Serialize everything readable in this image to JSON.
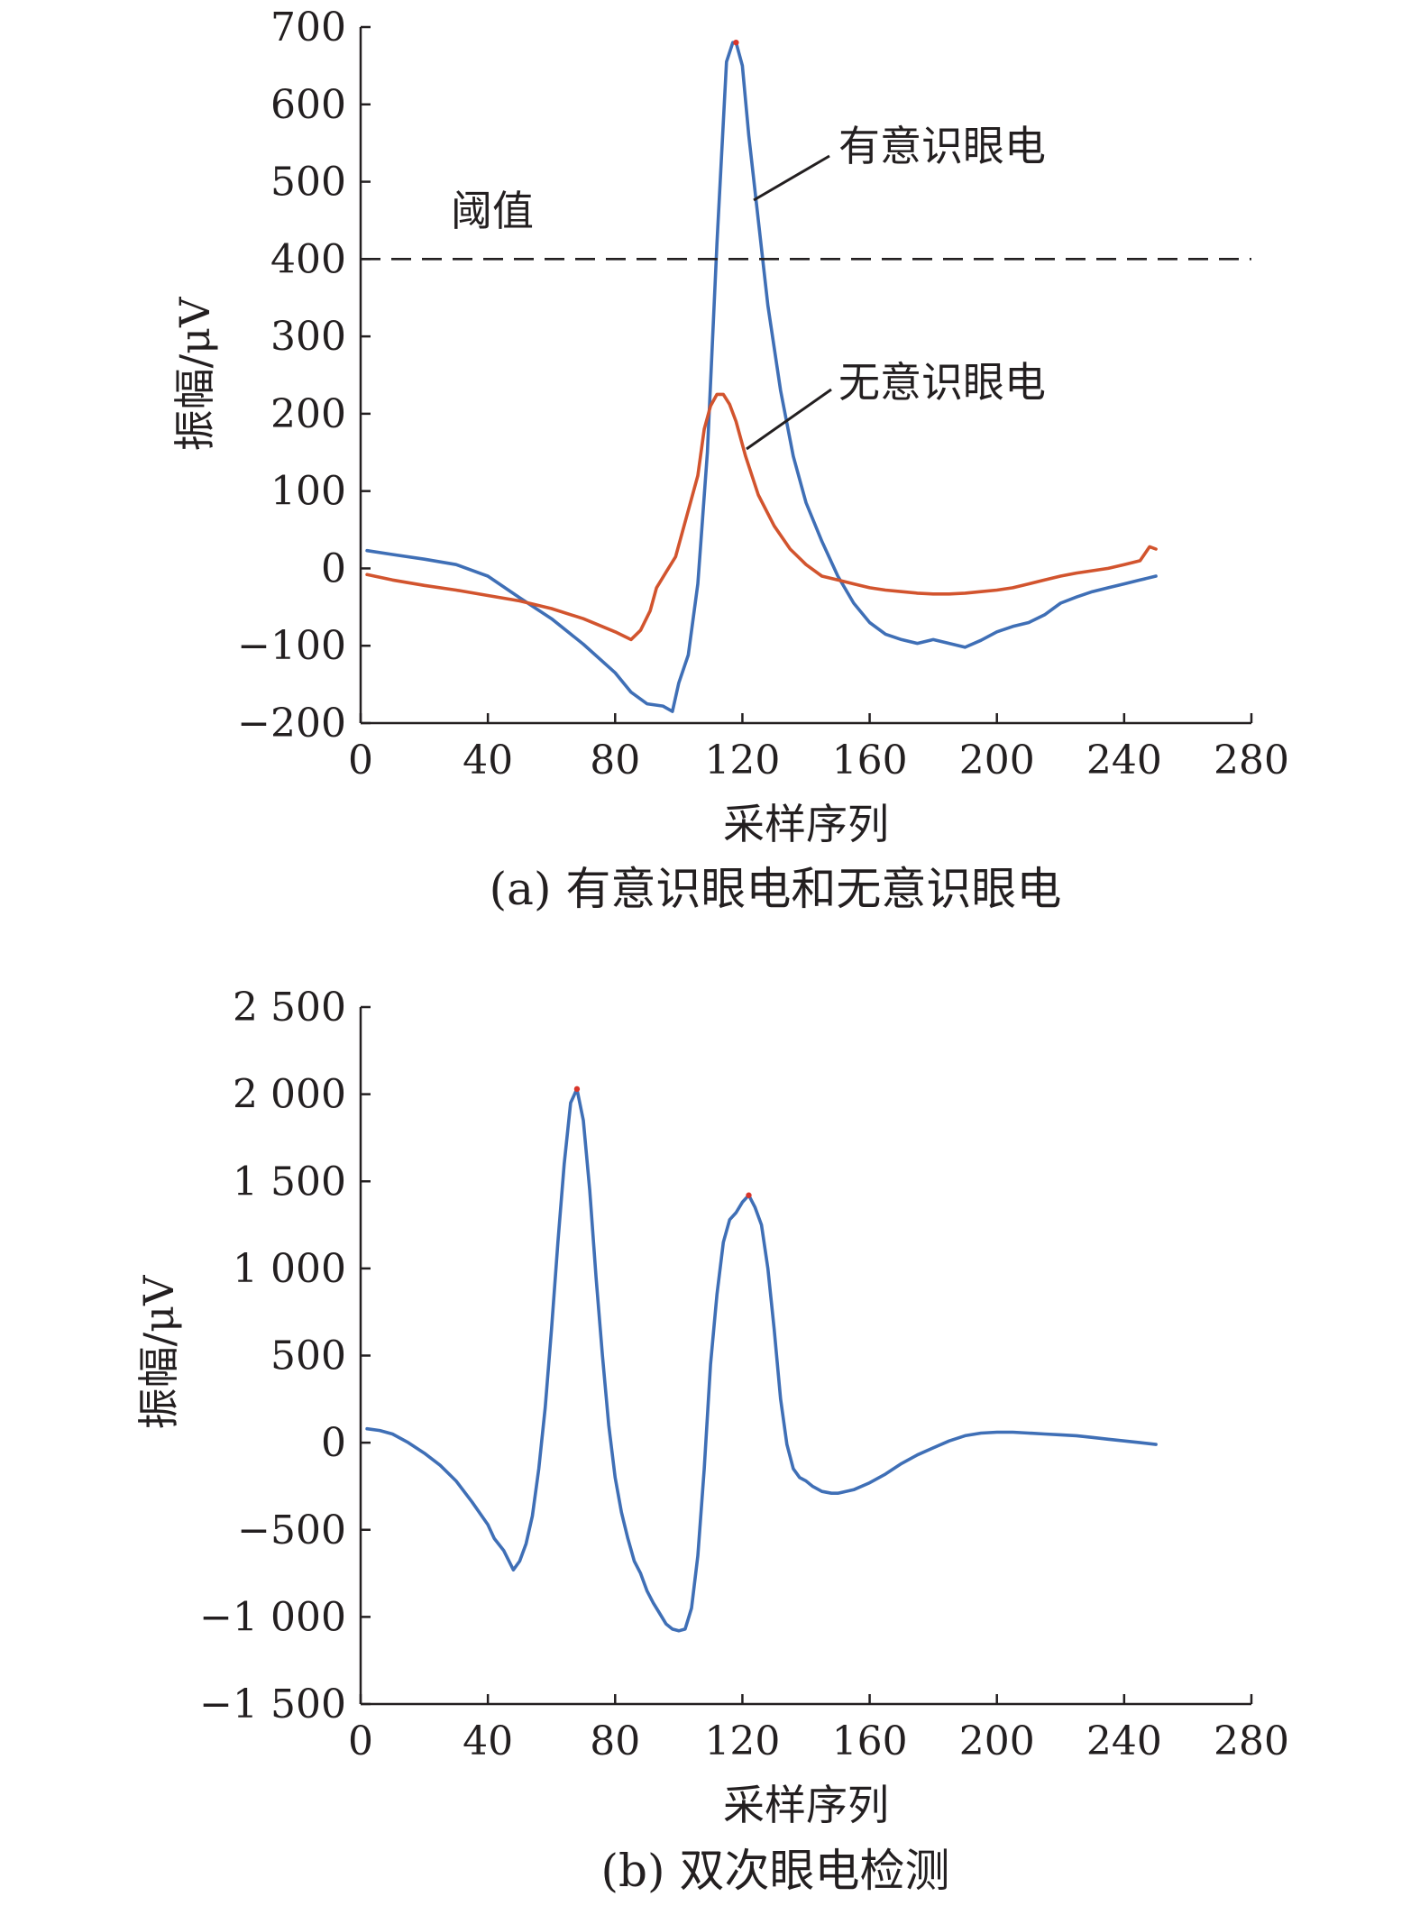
{
  "chart_data": [
    {
      "type": "line",
      "caption": "(a) 有意识眼电和无意识眼电",
      "xlabel": "采样序列",
      "ylabel": "振幅/μV",
      "xlim": [
        0,
        280
      ],
      "ylim": [
        -200,
        700
      ],
      "xticks": [
        0,
        40,
        80,
        120,
        160,
        200,
        240,
        280
      ],
      "yticks": [
        -200,
        -100,
        0,
        100,
        200,
        300,
        400,
        500,
        600,
        700
      ],
      "xtick_labels": [
        "0",
        "40",
        "80",
        "120",
        "160",
        "200",
        "240",
        "280"
      ],
      "ytick_labels": [
        "−200",
        "−100",
        "0",
        "100",
        "200",
        "300",
        "400",
        "500",
        "600",
        "700"
      ],
      "threshold": {
        "label": "阈值",
        "value": 400
      },
      "series": [
        {
          "name": "有意识眼电",
          "color": "#3f6fb6",
          "peak_marker_color": "#d9352a",
          "peak": [
            118,
            680
          ],
          "x": [
            2,
            10,
            20,
            30,
            40,
            50,
            60,
            70,
            80,
            85,
            90,
            95,
            98,
            100,
            103,
            106,
            109,
            112,
            115,
            117,
            118,
            120,
            122,
            125,
            128,
            132,
            136,
            140,
            145,
            150,
            155,
            160,
            165,
            170,
            175,
            180,
            185,
            190,
            195,
            200,
            205,
            210,
            215,
            220,
            225,
            230,
            235,
            240,
            245,
            250
          ],
          "y": [
            23,
            18,
            12,
            5,
            -10,
            -38,
            -65,
            -98,
            -135,
            -160,
            -175,
            -178,
            -185,
            -148,
            -112,
            -20,
            150,
            420,
            655,
            680,
            680,
            650,
            560,
            450,
            340,
            230,
            145,
            85,
            35,
            -10,
            -45,
            -70,
            -85,
            -92,
            -97,
            -92,
            -97,
            -102,
            -93,
            -82,
            -75,
            -70,
            -60,
            -45,
            -37,
            -30,
            -25,
            -20,
            -15,
            -10
          ]
        },
        {
          "name": "无意识眼电",
          "color": "#d2542e",
          "x": [
            2,
            10,
            20,
            30,
            40,
            50,
            60,
            70,
            80,
            85,
            88,
            91,
            93,
            96,
            99,
            102,
            106,
            108,
            110,
            112,
            114,
            116,
            118,
            121,
            125,
            130,
            135,
            140,
            145,
            150,
            155,
            160,
            165,
            170,
            175,
            180,
            185,
            190,
            195,
            200,
            205,
            210,
            215,
            220,
            225,
            230,
            235,
            240,
            245,
            248,
            250
          ],
          "y": [
            -8,
            -15,
            -22,
            -28,
            -35,
            -42,
            -52,
            -65,
            -82,
            -92,
            -80,
            -55,
            -25,
            -5,
            15,
            60,
            120,
            180,
            210,
            225,
            225,
            212,
            190,
            145,
            95,
            55,
            25,
            5,
            -10,
            -15,
            -20,
            -25,
            -28,
            -30,
            -32,
            -33,
            -33,
            -32,
            -30,
            -28,
            -25,
            -20,
            -15,
            -10,
            -6,
            -3,
            0,
            5,
            10,
            28,
            25
          ]
        }
      ]
    },
    {
      "type": "line",
      "caption": "(b) 双次眼电检测",
      "xlabel": "采样序列",
      "ylabel": "振幅/μV",
      "xlim": [
        0,
        280
      ],
      "ylim": [
        -1500,
        2500
      ],
      "xticks": [
        0,
        40,
        80,
        120,
        160,
        200,
        240,
        280
      ],
      "yticks": [
        -1500,
        -1000,
        -500,
        0,
        500,
        1000,
        1500,
        2000,
        2500
      ],
      "xtick_labels": [
        "0",
        "40",
        "80",
        "120",
        "160",
        "200",
        "240",
        "280"
      ],
      "ytick_labels": [
        "−1 500",
        "−1 000",
        "−500",
        "0",
        "500",
        "1 000",
        "1 500",
        "2 000",
        "2 500"
      ],
      "series": [
        {
          "name": "",
          "color": "#3f6fb6",
          "peak_marker_color": "#d9352a",
          "peaks": [
            [
              68,
              2030
            ],
            [
              122,
              1420
            ]
          ],
          "x": [
            2,
            6,
            10,
            15,
            20,
            25,
            30,
            35,
            40,
            42,
            45,
            48,
            50,
            52,
            54,
            56,
            58,
            60,
            62,
            64,
            66,
            68,
            70,
            72,
            74,
            76,
            78,
            80,
            82,
            84,
            86,
            88,
            90,
            92,
            94,
            96,
            98,
            100,
            102,
            104,
            106,
            108,
            110,
            112,
            114,
            116,
            118,
            120,
            122,
            124,
            126,
            128,
            130,
            132,
            134,
            136,
            138,
            140,
            142,
            145,
            148,
            150,
            155,
            160,
            165,
            170,
            175,
            180,
            185,
            190,
            195,
            200,
            205,
            210,
            215,
            220,
            225,
            230,
            235,
            240,
            245,
            250
          ],
          "y": [
            80,
            70,
            50,
            0,
            -60,
            -130,
            -220,
            -340,
            -470,
            -550,
            -620,
            -730,
            -680,
            -580,
            -420,
            -150,
            200,
            650,
            1150,
            1600,
            1950,
            2030,
            1850,
            1450,
            950,
            500,
            100,
            -200,
            -400,
            -550,
            -680,
            -750,
            -850,
            -920,
            -980,
            -1040,
            -1070,
            -1080,
            -1070,
            -950,
            -650,
            -150,
            450,
            850,
            1150,
            1280,
            1320,
            1380,
            1420,
            1350,
            1250,
            1000,
            650,
            250,
            -10,
            -150,
            -200,
            -220,
            -250,
            -280,
            -290,
            -290,
            -270,
            -230,
            -180,
            -120,
            -70,
            -30,
            10,
            40,
            55,
            60,
            60,
            55,
            50,
            45,
            40,
            30,
            20,
            10,
            0,
            -10
          ]
        }
      ]
    }
  ],
  "annotations": {
    "conscious_label": "有意识眼电",
    "unconscious_label": "无意识眼电",
    "threshold_label": "阈值"
  }
}
